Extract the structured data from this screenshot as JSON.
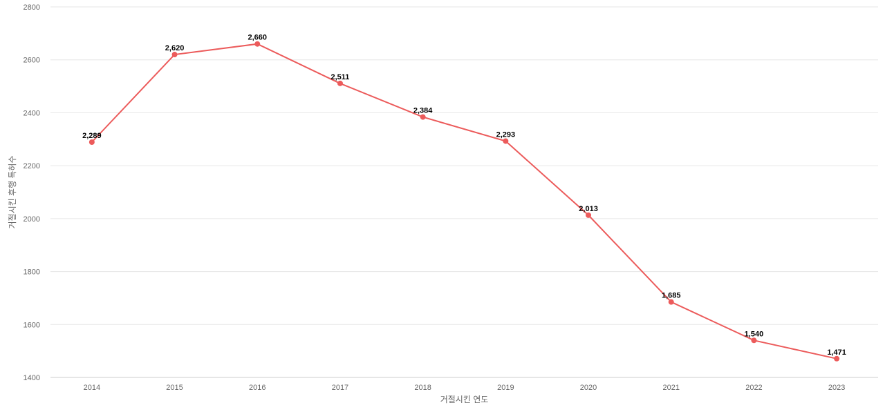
{
  "chart_data": {
    "type": "line",
    "xlabel": "거절시킨 연도",
    "ylabel": "거절시킨 후행 특허수",
    "categories": [
      "2014",
      "2015",
      "2016",
      "2017",
      "2018",
      "2019",
      "2020",
      "2021",
      "2022",
      "2023"
    ],
    "ylim": [
      1400,
      2800
    ],
    "yticks": [
      1400,
      1600,
      1800,
      2000,
      2200,
      2400,
      2600,
      2800
    ],
    "grid": true,
    "series": [
      {
        "values": [
          2289,
          2620,
          2660,
          2511,
          2384,
          2293,
          2013,
          1685,
          1540,
          1471
        ],
        "labels": [
          "2,289",
          "2,620",
          "2,660",
          "2,511",
          "2,384",
          "2,293",
          "2,013",
          "1,685",
          "1,540",
          "1,471"
        ],
        "color": "#ec5b5b"
      }
    ]
  }
}
